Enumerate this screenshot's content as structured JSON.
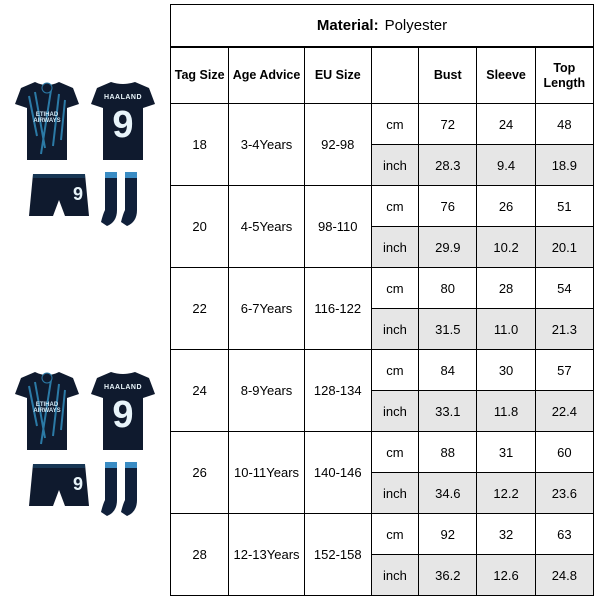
{
  "product": {
    "player_name": "HAALAND",
    "player_number": "9",
    "sponsor_line1": "ETIHAD",
    "sponsor_line2": "AIRWAYS",
    "colors": {
      "jersey_base": "#0f1a2e",
      "jersey_accent": "#2b7aa6",
      "text_on_jersey": "#e8f4fa",
      "sock_stripe": "#3a8cc4"
    }
  },
  "material": {
    "label": "Material:",
    "value": "Polyester"
  },
  "table": {
    "columns": [
      "Tag Size",
      "Age Advice",
      "EU Size",
      "",
      "Bust",
      "Sleeve",
      "Top Length"
    ],
    "unit_labels": {
      "cm": "cm",
      "inch": "inch"
    },
    "rows": [
      {
        "tag": "18",
        "age": "3-4Years",
        "eu": "92-98",
        "cm": [
          "72",
          "24",
          "48"
        ],
        "inch": [
          "28.3",
          "9.4",
          "18.9"
        ]
      },
      {
        "tag": "20",
        "age": "4-5Years",
        "eu": "98-110",
        "cm": [
          "76",
          "26",
          "51"
        ],
        "inch": [
          "29.9",
          "10.2",
          "20.1"
        ]
      },
      {
        "tag": "22",
        "age": "6-7Years",
        "eu": "116-122",
        "cm": [
          "80",
          "28",
          "54"
        ],
        "inch": [
          "31.5",
          "11.0",
          "21.3"
        ]
      },
      {
        "tag": "24",
        "age": "8-9Years",
        "eu": "128-134",
        "cm": [
          "84",
          "30",
          "57"
        ],
        "inch": [
          "33.1",
          "11.8",
          "22.4"
        ]
      },
      {
        "tag": "26",
        "age": "10-11Years",
        "eu": "140-146",
        "cm": [
          "88",
          "31",
          "60"
        ],
        "inch": [
          "34.6",
          "12.2",
          "23.6"
        ]
      },
      {
        "tag": "28",
        "age": "12-13Years",
        "eu": "152-158",
        "cm": [
          "92",
          "32",
          "63"
        ],
        "inch": [
          "36.2",
          "12.6",
          "24.8"
        ]
      }
    ],
    "style": {
      "border_color": "#000000",
      "inch_row_bg": "#e6e6e6",
      "header_fontsize": 12.5,
      "cell_fontsize": 13
    }
  }
}
